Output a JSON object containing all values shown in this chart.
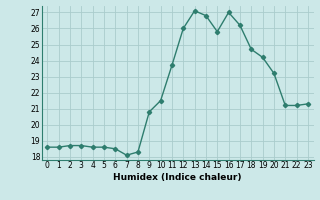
{
  "x": [
    0,
    1,
    2,
    3,
    4,
    5,
    6,
    7,
    8,
    9,
    10,
    11,
    12,
    13,
    14,
    15,
    16,
    17,
    18,
    19,
    20,
    21,
    22,
    23
  ],
  "y": [
    18.6,
    18.6,
    18.7,
    18.7,
    18.6,
    18.6,
    18.5,
    18.1,
    18.3,
    20.8,
    21.5,
    23.7,
    26.0,
    27.1,
    26.8,
    25.8,
    27.0,
    26.2,
    24.7,
    24.2,
    23.2,
    21.2,
    21.2,
    21.3
  ],
  "xlabel": "Humidex (Indice chaleur)",
  "ylim_min": 17.8,
  "ylim_max": 27.4,
  "xlim_min": -0.5,
  "xlim_max": 23.5,
  "yticks": [
    18,
    19,
    20,
    21,
    22,
    23,
    24,
    25,
    26,
    27
  ],
  "xticks": [
    0,
    1,
    2,
    3,
    4,
    5,
    6,
    7,
    8,
    9,
    10,
    11,
    12,
    13,
    14,
    15,
    16,
    17,
    18,
    19,
    20,
    21,
    22,
    23
  ],
  "line_color": "#2e7d6e",
  "bg_color": "#cce8e8",
  "grid_color": "#aacccc",
  "marker": "D",
  "markersize": 2.2,
  "linewidth": 1.0,
  "tick_fontsize": 5.5,
  "xlabel_fontsize": 6.5
}
